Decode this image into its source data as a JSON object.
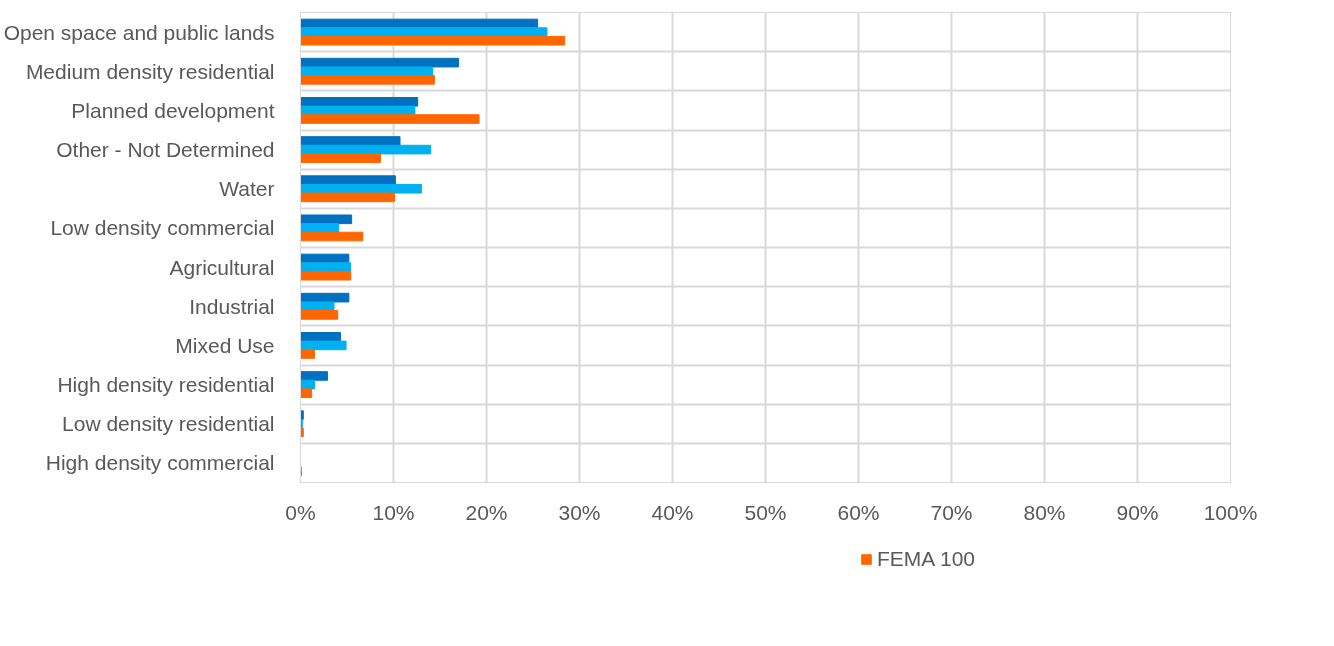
{
  "chart_data": {
    "type": "bar",
    "orientation": "horizontal",
    "categories": [
      "Open space and public lands",
      "Medium density residential",
      "Planned development",
      "Other - Not Determined",
      "Water",
      "Low density commercial",
      "Agricultural",
      "Industrial",
      "Mixed Use",
      "High density residential",
      "Low density residential",
      "High density commercial"
    ],
    "series": [
      {
        "color": "#0070c0",
        "values": [
          25.5,
          17.0,
          12.6,
          10.7,
          10.2,
          5.5,
          5.2,
          5.2,
          4.3,
          2.9,
          0.3,
          0
        ]
      },
      {
        "color": "#00b0f0",
        "values": [
          26.5,
          14.2,
          12.3,
          14.0,
          13.0,
          4.1,
          5.4,
          3.6,
          4.9,
          1.5,
          0.2,
          0
        ]
      },
      {
        "name": "FEMA 100",
        "color": "#ff6600",
        "values": [
          28.4,
          14.4,
          19.2,
          8.6,
          10.1,
          6.7,
          5.4,
          4.0,
          1.5,
          1.2,
          0.3,
          0.1
        ]
      }
    ],
    "xlim": [
      0,
      100
    ],
    "xticks": [
      {
        "value": 0,
        "label": "0%"
      },
      {
        "value": 10,
        "label": "10%"
      },
      {
        "value": 20,
        "label": "20%"
      },
      {
        "value": 30,
        "label": "30%"
      },
      {
        "value": 40,
        "label": "40%"
      },
      {
        "value": 50,
        "label": "50%"
      },
      {
        "value": 60,
        "label": "60%"
      },
      {
        "value": 70,
        "label": "70%"
      },
      {
        "value": 80,
        "label": "80%"
      },
      {
        "value": 90,
        "label": "90%"
      },
      {
        "value": 100,
        "label": "100%"
      }
    ],
    "grid": true,
    "legend": "bottom"
  }
}
